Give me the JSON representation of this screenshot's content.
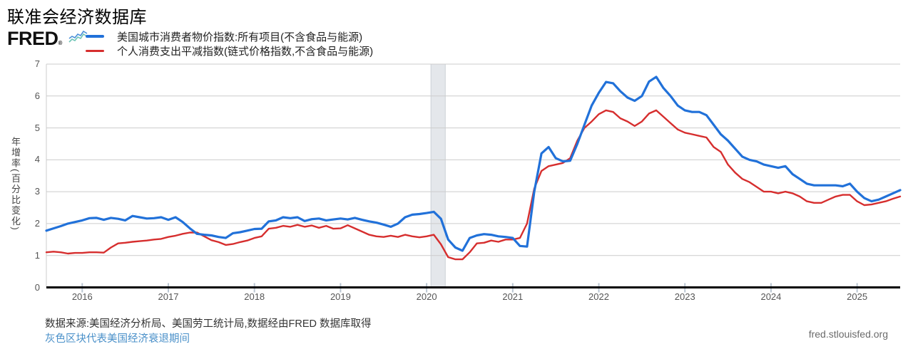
{
  "header": {
    "page_title": "联准会经济数据库",
    "logo_text": "FRED",
    "logo_reg": "®"
  },
  "legend": [
    {
      "label": "美国城市消费者物价指数:所有项目(不含食品与能源)",
      "color": "#2171d9"
    },
    {
      "label": "个人消费支出平减指数(链式价格指数,不含食品与能源)",
      "color": "#d62e2e"
    }
  ],
  "footer": {
    "source_note": "数据来源:美国经济分析局、美国劳工统计局,数据经由FRED 数据库取得",
    "recession_note": "灰色区块代表美国经济衰退期间",
    "site_url": "fred.stlouisfed.org"
  },
  "colors": {
    "series1_blue": "#2171d9",
    "series2_red": "#d62e2e",
    "recession_band": "#e4e7eb",
    "recession_band_edge": "#ccd1d7",
    "gridline": "#cccccc",
    "axis_line": "#000000",
    "tick_mark": "#b9c5d1",
    "link_blue": "#4a90c9"
  },
  "chart_data": {
    "type": "line",
    "title": "联准会经济数据库",
    "ylabel": "年增率(百分比变化)",
    "xlabel": "",
    "frequency": "monthly",
    "x_start": "2015-08",
    "x_end": "2025-07",
    "ylim": [
      0,
      7
    ],
    "ytick_labels": [
      "0",
      "1",
      "2",
      "3",
      "4",
      "5",
      "6",
      "7"
    ],
    "xtick_labels": [
      "2016",
      "2017",
      "2018",
      "2019",
      "2020",
      "2021",
      "2022",
      "2023",
      "2024",
      "2025"
    ],
    "grid": "horizontal",
    "legend_position": "top-left",
    "recession_band": {
      "from": "2020-02",
      "to": "2020-04"
    },
    "series": [
      {
        "name": "美国城市消费者物价指数:所有项目(不含食品与能源)",
        "color": "#2171d9",
        "line_width": 3.2,
        "values": [
          1.78,
          1.85,
          1.92,
          2.0,
          2.05,
          2.1,
          2.17,
          2.18,
          2.12,
          2.18,
          2.15,
          2.1,
          2.24,
          2.2,
          2.16,
          2.17,
          2.2,
          2.12,
          2.2,
          2.05,
          1.85,
          1.68,
          1.65,
          1.63,
          1.58,
          1.55,
          1.7,
          1.73,
          1.78,
          1.83,
          1.84,
          2.07,
          2.1,
          2.2,
          2.17,
          2.2,
          2.08,
          2.14,
          2.16,
          2.1,
          2.13,
          2.16,
          2.13,
          2.18,
          2.12,
          2.07,
          2.03,
          1.97,
          1.9,
          2.0,
          2.2,
          2.28,
          2.3,
          2.33,
          2.37,
          2.15,
          1.5,
          1.25,
          1.15,
          1.55,
          1.63,
          1.67,
          1.65,
          1.6,
          1.58,
          1.55,
          1.3,
          1.28,
          3.0,
          4.2,
          4.4,
          4.05,
          3.95,
          3.97,
          4.5,
          5.1,
          5.7,
          6.1,
          6.44,
          6.4,
          6.15,
          5.95,
          5.85,
          6.0,
          6.45,
          6.6,
          6.25,
          6.0,
          5.7,
          5.55,
          5.5,
          5.5,
          5.4,
          5.1,
          4.8,
          4.6,
          4.35,
          4.1,
          4.0,
          3.95,
          3.85,
          3.8,
          3.75,
          3.8,
          3.55,
          3.4,
          3.25,
          3.2,
          3.2,
          3.2,
          3.2,
          3.17,
          3.25,
          3.0,
          2.8,
          2.7,
          2.75,
          2.85,
          2.95,
          3.05
        ]
      },
      {
        "name": "个人消费支出平减指数(链式价格指数,不含食品与能源)",
        "color": "#d62e2e",
        "line_width": 2.4,
        "values": [
          1.1,
          1.12,
          1.1,
          1.06,
          1.08,
          1.08,
          1.1,
          1.1,
          1.09,
          1.25,
          1.38,
          1.4,
          1.43,
          1.45,
          1.47,
          1.5,
          1.52,
          1.58,
          1.62,
          1.68,
          1.72,
          1.72,
          1.6,
          1.48,
          1.42,
          1.33,
          1.36,
          1.42,
          1.47,
          1.55,
          1.6,
          1.84,
          1.87,
          1.93,
          1.9,
          1.96,
          1.9,
          1.94,
          1.87,
          1.93,
          1.84,
          1.85,
          1.95,
          1.85,
          1.75,
          1.65,
          1.6,
          1.58,
          1.62,
          1.58,
          1.65,
          1.6,
          1.57,
          1.6,
          1.65,
          1.35,
          0.95,
          0.88,
          0.88,
          1.1,
          1.38,
          1.4,
          1.47,
          1.43,
          1.5,
          1.5,
          1.55,
          2.0,
          3.1,
          3.65,
          3.8,
          3.85,
          3.9,
          4.05,
          4.6,
          5.0,
          5.2,
          5.43,
          5.55,
          5.5,
          5.3,
          5.2,
          5.06,
          5.2,
          5.45,
          5.55,
          5.35,
          5.15,
          4.95,
          4.85,
          4.8,
          4.75,
          4.7,
          4.4,
          4.25,
          3.85,
          3.6,
          3.4,
          3.3,
          3.15,
          3.0,
          3.0,
          2.95,
          3.0,
          2.95,
          2.85,
          2.7,
          2.65,
          2.65,
          2.75,
          2.85,
          2.9,
          2.9,
          2.7,
          2.58,
          2.6,
          2.65,
          2.7,
          2.78,
          2.85
        ]
      }
    ]
  }
}
